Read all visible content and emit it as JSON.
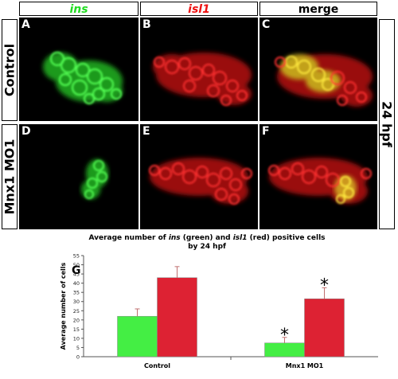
{
  "headers": {
    "col1": "ins",
    "col2": "isl1",
    "col3": "merge",
    "row1": "Control",
    "row2": "Mnx1 MO1",
    "side": "24 hpf",
    "col1_color": "#22dd22",
    "col2_color": "#ee1111"
  },
  "panels": {
    "a": "A",
    "b": "B",
    "c": "C",
    "d": "D",
    "e": "E",
    "f": "F"
  },
  "chart_title": {
    "pre": "Average number of ",
    "gene1": "ins",
    "mid": " (green) and ",
    "gene2": "isl1",
    "post": " (red) positive cells",
    "line2": "by 24 hpf"
  },
  "chart_data": {
    "type": "bar",
    "panel_label": "G",
    "categories": [
      "Control",
      "Mnx1 MO1"
    ],
    "series": [
      {
        "color": "#44ee44",
        "values": [
          22,
          7.5
        ],
        "errors": [
          4,
          3
        ]
      },
      {
        "color": "#dd2233",
        "values": [
          43,
          31.5
        ],
        "errors": [
          6,
          6
        ]
      }
    ],
    "ylabel": "Average number of cells",
    "ylim": [
      0,
      55
    ],
    "yticks": [
      "0",
      "5",
      "10",
      "15",
      "20",
      "25",
      "30",
      "35",
      "40",
      "45",
      "50",
      "55"
    ],
    "asterisk": "*",
    "significant": [
      [
        false,
        true
      ],
      [
        false,
        true
      ]
    ]
  }
}
